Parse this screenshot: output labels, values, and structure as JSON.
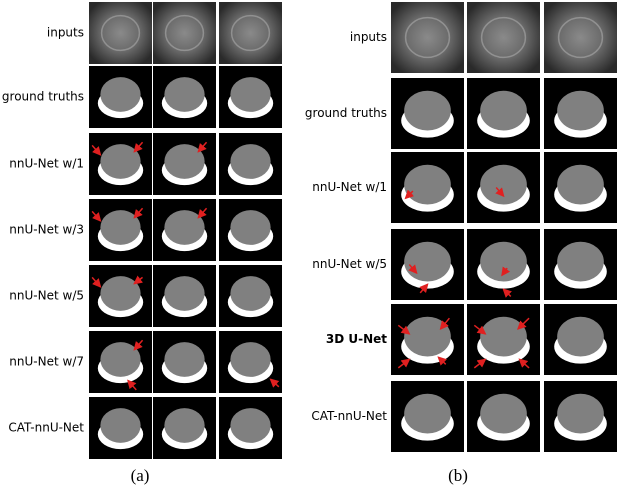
{
  "panel_a": {
    "row_labels": [
      "inputs",
      "ground truths",
      "nnU-Net w/1",
      "nnU-Net w/3",
      "nnU-Net w/5",
      "nnU-Net w/7",
      "CAT-nnU-Net"
    ],
    "caption": "(a)"
  },
  "panel_b": {
    "row_labels": [
      "inputs",
      "ground truths",
      "nnU-Net w/1",
      "nnU-Net w/5",
      "3D U-Net",
      "CAT-nnU-Net"
    ],
    "caption": "(b)"
  }
}
